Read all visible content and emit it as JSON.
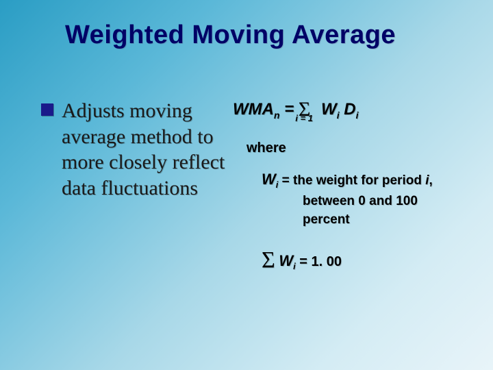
{
  "title": "Weighted Moving Average",
  "bullet": "Adjusts moving average method to more closely reflect data fluctuations",
  "formula": {
    "lhs_base": "WMA",
    "lhs_sub": "n",
    "eq": " = ",
    "sigma": "Σ",
    "sum_sub": "i = 1",
    "term1_base": "W",
    "term1_sub": "i",
    "term2_base": "D",
    "term2_sub": "i"
  },
  "where_label": "where",
  "definition": {
    "var_base": "W",
    "var_sub": "i",
    "eq": " = ",
    "line1_a": "the weight for period ",
    "line1_var": "i",
    "line1_b": ",",
    "line2": "between 0 and 100",
    "line3": "percent"
  },
  "constraint": {
    "sigma": "Σ",
    "var_base": "W",
    "var_sub": "i",
    "eq": " = ",
    "value": "1. 00"
  },
  "colors": {
    "title_color": "#000066",
    "bullet_mark": "#1a1a8a",
    "bg_gradient_start": "#2a9dc4",
    "bg_gradient_end": "#e8f4f9"
  }
}
